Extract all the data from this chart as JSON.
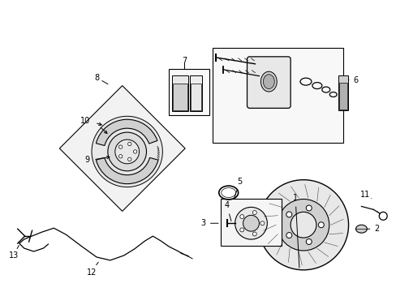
{
  "background_color": "#ffffff",
  "line_color": "#000000",
  "light_gray": "#e8e8e8",
  "mid_gray": "#d0d0d0",
  "dark_gray": "#b0b0b0"
}
